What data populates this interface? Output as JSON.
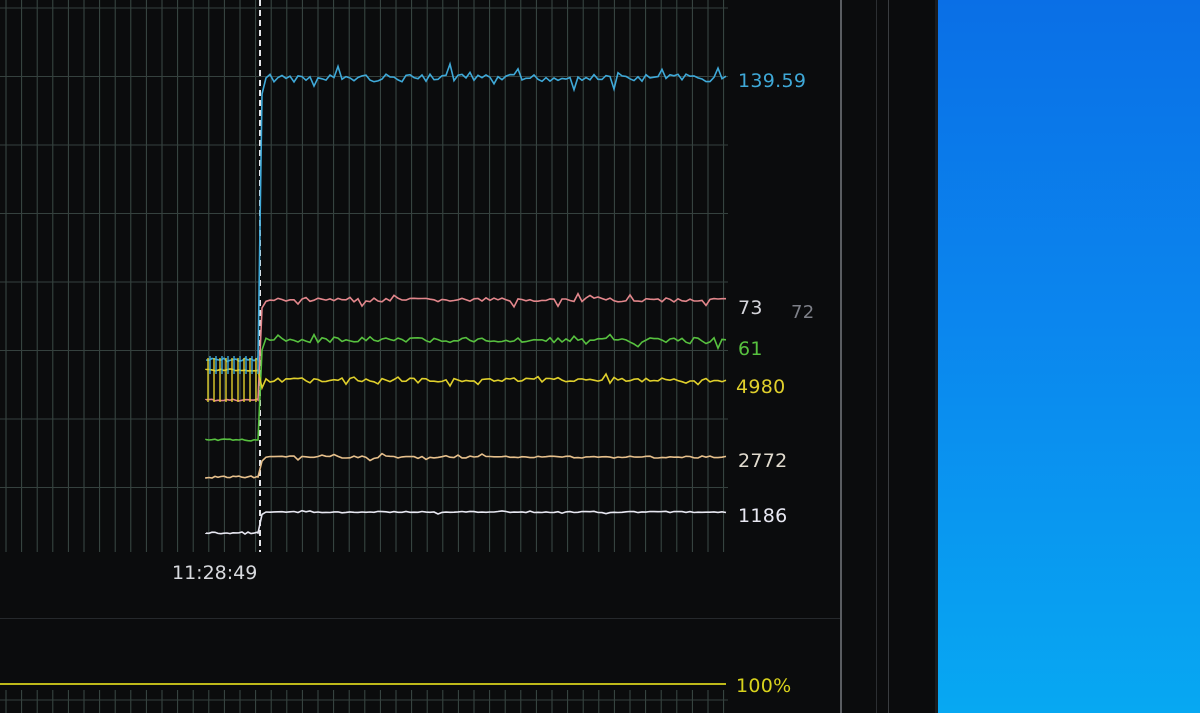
{
  "chart_data": {
    "type": "line",
    "x_marker_label": "11:28:49",
    "series": [
      {
        "label": "139.59",
        "value": 139.59,
        "color": "#3fa9d8"
      },
      {
        "label": "73",
        "value": 73,
        "color": "#e3878c"
      },
      {
        "label": "61",
        "value": 61,
        "color": "#57c13f"
      },
      {
        "label": "4980",
        "value": 4980,
        "color": "#e0d02c"
      },
      {
        "label": "2772",
        "value": 2772,
        "color": "#e7c08c"
      },
      {
        "label": "1186",
        "value": 1186,
        "color": "#e8e8f2"
      }
    ],
    "secondary_label": "72",
    "bottom_series": {
      "label": "100%",
      "value": 100,
      "color": "#d8d21c"
    },
    "grid": true
  }
}
